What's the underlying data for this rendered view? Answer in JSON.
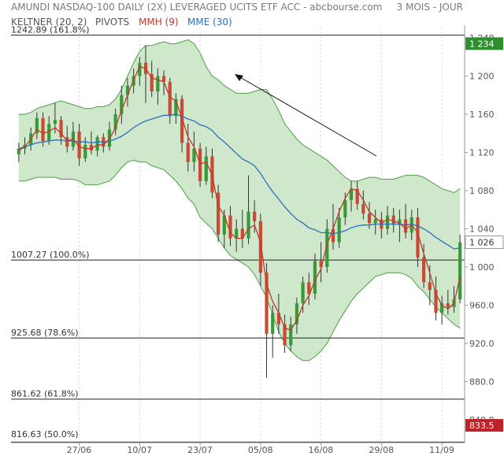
{
  "header": {
    "title": "AMUNDI NASDAQ-100 DAILY (2X) LEVERAGED UCITS ETF ACC - abcbourse.com",
    "period": "3 MOIS - JOUR"
  },
  "legend": [
    {
      "label": "KELTNER (20, 2)",
      "color": "#555555"
    },
    {
      "label": "PIVOTS",
      "color": "#555555"
    },
    {
      "label": "MMH (9)",
      "color": "#c0392b"
    },
    {
      "label": "MME (30)",
      "color": "#2c6fbf"
    }
  ],
  "colors": {
    "band_fill": "#cfe8cc",
    "band_line": "#4e9e46",
    "candle_up": "#3a9a3a",
    "candle_down": "#c94b36",
    "mmh": "#c0392b",
    "mme": "#2c6fbf",
    "price_badge": "#2f8f2f",
    "low_badge": "#c0222a"
  },
  "chart_data": {
    "type": "candlestick",
    "ylim": [
      833.5,
      1250
    ],
    "y_ticks": [
      "1 240",
      "1 200",
      "1 160",
      "1 120",
      "1 080",
      "1 040",
      "1 000",
      "960.0",
      "920.0",
      "880.0",
      "840.0"
    ],
    "y_tick_values": [
      1240,
      1200,
      1160,
      1120,
      1080,
      1040,
      1000,
      960,
      920,
      880,
      840
    ],
    "x_ticks": [
      "27/06",
      "10/07",
      "23/07",
      "05/08",
      "16/08",
      "29/08",
      "11/09"
    ],
    "x_tick_index": [
      10,
      20,
      30,
      40,
      50,
      60,
      70
    ],
    "pivots": [
      {
        "label": "1242.89  (161.8%)",
        "value": 1242.89
      },
      {
        "label": "1007.27  (100.0%)",
        "value": 1007.27
      },
      {
        "label": "925.68  (78.6%)",
        "value": 925.68
      },
      {
        "label": "861.62  (61.8%)",
        "value": 861.62
      },
      {
        "label": "816.63  (50.0%)",
        "value": 816.63
      }
    ],
    "badges": [
      {
        "label": "1 234",
        "value": 1234
      },
      {
        "label": "1 026",
        "value": 1026
      },
      {
        "label": "833.5",
        "value": 833.5
      }
    ],
    "candles": [
      {
        "o": 1118,
        "h": 1130,
        "l": 1110,
        "c": 1124
      },
      {
        "o": 1124,
        "h": 1136,
        "l": 1118,
        "c": 1128
      },
      {
        "o": 1128,
        "h": 1146,
        "l": 1122,
        "c": 1140
      },
      {
        "o": 1140,
        "h": 1162,
        "l": 1134,
        "c": 1156
      },
      {
        "o": 1156,
        "h": 1162,
        "l": 1126,
        "c": 1132
      },
      {
        "o": 1132,
        "h": 1158,
        "l": 1128,
        "c": 1150
      },
      {
        "o": 1150,
        "h": 1172,
        "l": 1140,
        "c": 1154
      },
      {
        "o": 1154,
        "h": 1158,
        "l": 1128,
        "c": 1136
      },
      {
        "o": 1136,
        "h": 1148,
        "l": 1120,
        "c": 1126
      },
      {
        "o": 1126,
        "h": 1152,
        "l": 1122,
        "c": 1142
      },
      {
        "o": 1142,
        "h": 1150,
        "l": 1106,
        "c": 1114
      },
      {
        "o": 1114,
        "h": 1136,
        "l": 1110,
        "c": 1128
      },
      {
        "o": 1128,
        "h": 1142,
        "l": 1118,
        "c": 1122
      },
      {
        "o": 1122,
        "h": 1138,
        "l": 1116,
        "c": 1136
      },
      {
        "o": 1136,
        "h": 1140,
        "l": 1120,
        "c": 1126
      },
      {
        "o": 1126,
        "h": 1152,
        "l": 1122,
        "c": 1144
      },
      {
        "o": 1144,
        "h": 1166,
        "l": 1138,
        "c": 1160
      },
      {
        "o": 1160,
        "h": 1190,
        "l": 1150,
        "c": 1180
      },
      {
        "o": 1180,
        "h": 1198,
        "l": 1168,
        "c": 1190
      },
      {
        "o": 1190,
        "h": 1208,
        "l": 1182,
        "c": 1200
      },
      {
        "o": 1200,
        "h": 1220,
        "l": 1190,
        "c": 1214
      },
      {
        "o": 1214,
        "h": 1232,
        "l": 1172,
        "c": 1202
      },
      {
        "o": 1202,
        "h": 1216,
        "l": 1178,
        "c": 1184
      },
      {
        "o": 1184,
        "h": 1208,
        "l": 1170,
        "c": 1200
      },
      {
        "o": 1200,
        "h": 1206,
        "l": 1180,
        "c": 1194
      },
      {
        "o": 1194,
        "h": 1198,
        "l": 1150,
        "c": 1158
      },
      {
        "o": 1158,
        "h": 1182,
        "l": 1150,
        "c": 1176
      },
      {
        "o": 1176,
        "h": 1180,
        "l": 1120,
        "c": 1130
      },
      {
        "o": 1130,
        "h": 1150,
        "l": 1100,
        "c": 1110
      },
      {
        "o": 1110,
        "h": 1142,
        "l": 1100,
        "c": 1124
      },
      {
        "o": 1124,
        "h": 1130,
        "l": 1084,
        "c": 1090
      },
      {
        "o": 1090,
        "h": 1126,
        "l": 1086,
        "c": 1116
      },
      {
        "o": 1116,
        "h": 1124,
        "l": 1072,
        "c": 1078
      },
      {
        "o": 1078,
        "h": 1086,
        "l": 1026,
        "c": 1034
      },
      {
        "o": 1034,
        "h": 1060,
        "l": 1020,
        "c": 1054
      },
      {
        "o": 1054,
        "h": 1064,
        "l": 1022,
        "c": 1030
      },
      {
        "o": 1030,
        "h": 1050,
        "l": 1016,
        "c": 1040
      },
      {
        "o": 1040,
        "h": 1060,
        "l": 1020,
        "c": 1030
      },
      {
        "o": 1030,
        "h": 1096,
        "l": 1024,
        "c": 1058
      },
      {
        "o": 1058,
        "h": 1070,
        "l": 1036,
        "c": 1048
      },
      {
        "o": 1048,
        "h": 1056,
        "l": 980,
        "c": 994
      },
      {
        "o": 994,
        "h": 1004,
        "l": 884,
        "c": 930
      },
      {
        "o": 930,
        "h": 960,
        "l": 905,
        "c": 952
      },
      {
        "o": 952,
        "h": 972,
        "l": 930,
        "c": 940
      },
      {
        "o": 940,
        "h": 950,
        "l": 910,
        "c": 918
      },
      {
        "o": 918,
        "h": 948,
        "l": 912,
        "c": 940
      },
      {
        "o": 940,
        "h": 968,
        "l": 930,
        "c": 962
      },
      {
        "o": 962,
        "h": 990,
        "l": 952,
        "c": 984
      },
      {
        "o": 984,
        "h": 994,
        "l": 960,
        "c": 972
      },
      {
        "o": 972,
        "h": 1014,
        "l": 966,
        "c": 1006
      },
      {
        "o": 1006,
        "h": 1026,
        "l": 984,
        "c": 1000
      },
      {
        "o": 1000,
        "h": 1050,
        "l": 994,
        "c": 1040
      },
      {
        "o": 1040,
        "h": 1066,
        "l": 1018,
        "c": 1026
      },
      {
        "o": 1026,
        "h": 1062,
        "l": 1020,
        "c": 1052
      },
      {
        "o": 1052,
        "h": 1078,
        "l": 1044,
        "c": 1070
      },
      {
        "o": 1070,
        "h": 1090,
        "l": 1058,
        "c": 1082
      },
      {
        "o": 1082,
        "h": 1090,
        "l": 1060,
        "c": 1066
      },
      {
        "o": 1066,
        "h": 1080,
        "l": 1050,
        "c": 1056
      },
      {
        "o": 1056,
        "h": 1068,
        "l": 1040,
        "c": 1046
      },
      {
        "o": 1046,
        "h": 1060,
        "l": 1034,
        "c": 1050
      },
      {
        "o": 1050,
        "h": 1058,
        "l": 1030,
        "c": 1040
      },
      {
        "o": 1040,
        "h": 1064,
        "l": 1034,
        "c": 1054
      },
      {
        "o": 1054,
        "h": 1062,
        "l": 1036,
        "c": 1044
      },
      {
        "o": 1044,
        "h": 1060,
        "l": 1026,
        "c": 1050
      },
      {
        "o": 1050,
        "h": 1066,
        "l": 1030,
        "c": 1036
      },
      {
        "o": 1036,
        "h": 1060,
        "l": 1028,
        "c": 1052
      },
      {
        "o": 1052,
        "h": 1062,
        "l": 1000,
        "c": 1010
      },
      {
        "o": 1010,
        "h": 1024,
        "l": 978,
        "c": 984
      },
      {
        "o": 984,
        "h": 1002,
        "l": 960,
        "c": 976
      },
      {
        "o": 976,
        "h": 990,
        "l": 944,
        "c": 952
      },
      {
        "o": 952,
        "h": 970,
        "l": 940,
        "c": 962
      },
      {
        "o": 962,
        "h": 976,
        "l": 950,
        "c": 958
      },
      {
        "o": 958,
        "h": 980,
        "l": 952,
        "c": 966
      },
      {
        "o": 966,
        "h": 1034,
        "l": 962,
        "c": 1026
      }
    ],
    "mmh_values": [
      1122,
      1126,
      1134,
      1144,
      1140,
      1142,
      1146,
      1140,
      1132,
      1134,
      1126,
      1124,
      1124,
      1128,
      1128,
      1134,
      1146,
      1164,
      1180,
      1196,
      1210,
      1208,
      1198,
      1196,
      1194,
      1178,
      1174,
      1156,
      1136,
      1126,
      1108,
      1110,
      1096,
      1064,
      1054,
      1036,
      1030,
      1030,
      1040,
      1044,
      1026,
      982,
      964,
      952,
      936,
      934,
      944,
      960,
      970,
      986,
      998,
      1024,
      1040,
      1058,
      1072,
      1082,
      1080,
      1070,
      1058,
      1052,
      1046,
      1050,
      1048,
      1046,
      1040,
      1044,
      1036,
      1014,
      994,
      972,
      960,
      956,
      962,
      990
    ],
    "mme_values": [
      1124,
      1126,
      1128,
      1130,
      1131,
      1132,
      1133,
      1133,
      1132,
      1132,
      1131,
      1131,
      1130,
      1131,
      1131,
      1132,
      1134,
      1137,
      1141,
      1146,
      1150,
      1153,
      1155,
      1157,
      1159,
      1159,
      1160,
      1158,
      1155,
      1153,
      1149,
      1147,
      1143,
      1136,
      1131,
      1125,
      1119,
      1113,
      1110,
      1106,
      1098,
      1088,
      1079,
      1071,
      1063,
      1056,
      1050,
      1046,
      1041,
      1039,
      1036,
      1036,
      1035,
      1036,
      1038,
      1041,
      1043,
      1044,
      1044,
      1045,
      1045,
      1045,
      1045,
      1045,
      1044,
      1045,
      1043,
      1040,
      1036,
      1031,
      1027,
      1023,
      1019,
      1020
    ],
    "keltner_upper": [
      1160,
      1160,
      1162,
      1166,
      1168,
      1170,
      1172,
      1174,
      1172,
      1170,
      1168,
      1166,
      1166,
      1168,
      1168,
      1170,
      1176,
      1186,
      1200,
      1214,
      1226,
      1232,
      1232,
      1234,
      1236,
      1234,
      1234,
      1236,
      1238,
      1234,
      1224,
      1210,
      1200,
      1196,
      1190,
      1186,
      1182,
      1182,
      1182,
      1184,
      1186,
      1186,
      1176,
      1164,
      1150,
      1142,
      1134,
      1128,
      1124,
      1120,
      1116,
      1112,
      1106,
      1100,
      1094,
      1090,
      1090,
      1092,
      1094,
      1094,
      1092,
      1092,
      1092,
      1094,
      1096,
      1096,
      1096,
      1094,
      1090,
      1086,
      1082,
      1080,
      1078,
      1082
    ],
    "keltner_lower": [
      1090,
      1090,
      1092,
      1094,
      1094,
      1094,
      1094,
      1092,
      1092,
      1092,
      1090,
      1086,
      1086,
      1086,
      1088,
      1090,
      1096,
      1104,
      1110,
      1112,
      1110,
      1110,
      1106,
      1104,
      1102,
      1096,
      1090,
      1082,
      1072,
      1066,
      1052,
      1046,
      1040,
      1030,
      1020,
      1012,
      1008,
      1004,
      1000,
      992,
      980,
      968,
      950,
      932,
      920,
      912,
      906,
      902,
      902,
      906,
      912,
      920,
      932,
      944,
      954,
      964,
      972,
      978,
      984,
      990,
      992,
      994,
      994,
      994,
      992,
      988,
      980,
      974,
      966,
      958,
      952,
      946,
      940,
      936
    ]
  }
}
